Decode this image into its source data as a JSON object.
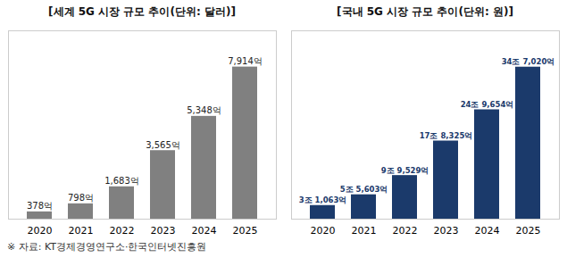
{
  "chart_data": [
    {
      "type": "bar",
      "title": "[세계 5G 시장 규모 추이(단위: 달러)]",
      "categories": [
        "2020",
        "2021",
        "2022",
        "2023",
        "2024",
        "2025"
      ],
      "values": [
        378,
        798,
        1683,
        3565,
        5348,
        7914
      ],
      "value_labels": [
        "378억",
        "798억",
        "1,683억",
        "3,565억",
        "5,348억",
        "7,914억"
      ],
      "color": "#808080",
      "ylim": [
        0,
        9800
      ],
      "grid": false,
      "data_labels": true,
      "tick_labels": "x",
      "annotations": [
        "※ 자료: KT경제경영연구소·한국인터넷진흥원"
      ]
    },
    {
      "type": "bar",
      "title": "[국내 5G 시장 규모 추이(단위: 원)]",
      "categories": [
        "2020",
        "2021",
        "2022",
        "2023",
        "2024",
        "2025"
      ],
      "values": [
        31063,
        55603,
        99529,
        178325,
        249654,
        347020
      ],
      "value_labels": [
        "3조 1,063억",
        "5조 5,603억",
        "9조 9,529억",
        "17조 8,325억",
        "24조 9,654억",
        "34조 7,020억"
      ],
      "color": "#1b3a6b",
      "ylim": [
        0,
        430000
      ],
      "grid": false,
      "data_labels": true,
      "tick_labels": "x"
    }
  ]
}
